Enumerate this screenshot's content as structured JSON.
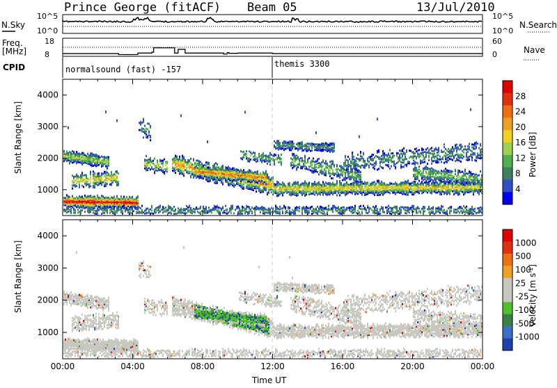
{
  "header": {
    "station": "Prince George (fitACF)",
    "beam": "Beam 05",
    "date": "13/Jul/2010"
  },
  "params": {
    "nsky_label": "N.Sky",
    "nsearch_label": "N.Search",
    "freq_label": "Freq.",
    "freq_unit": "[MHz]",
    "nave_label": "Nave",
    "cpid_label": "CPID",
    "nsky_ticks": [
      "10^5",
      "10^0"
    ],
    "nsearch_ticks": [
      "10^5",
      "10^0"
    ],
    "freq_ticks": [
      "18",
      "8"
    ],
    "nave_ticks": [
      "60",
      "0"
    ],
    "cpid_segments": [
      {
        "label": "normalsound (fast) -157",
        "start_hour": 0
      },
      {
        "label": "themis 3300",
        "start_hour": 12.0
      }
    ],
    "freq_series": [
      [
        0,
        10.2
      ],
      [
        1,
        10.2
      ],
      [
        2,
        10.2
      ],
      [
        3.1,
        10.2
      ],
      [
        3.2,
        9.4
      ],
      [
        4.2,
        9.4
      ],
      [
        4.3,
        10.6
      ],
      [
        5.1,
        11.3
      ],
      [
        5.2,
        14.8
      ],
      [
        6.3,
        14.8
      ],
      [
        6.4,
        10.6
      ],
      [
        6.6,
        13.6
      ],
      [
        6.9,
        13.6
      ],
      [
        7.0,
        10.6
      ],
      [
        9.1,
        10.6
      ],
      [
        9.2,
        9.8
      ],
      [
        9.4,
        11.0
      ],
      [
        9.5,
        10.4
      ],
      [
        10.0,
        10.6
      ],
      [
        11.9,
        10.6
      ],
      [
        12.0,
        10.2
      ],
      [
        24,
        10.2
      ]
    ]
  },
  "chart_data": [
    {
      "type": "heatmap",
      "name": "power",
      "ylabel": "Slant Range [km]",
      "xlabel": "",
      "colorbar_label": "Power [dB]",
      "colorbar_ticks": [
        "28",
        "24",
        "20",
        "16",
        "12",
        "8",
        "4"
      ],
      "yticks": [
        "4000",
        "3000",
        "2000",
        "1000"
      ],
      "ylim": [
        180,
        4500
      ],
      "xlim": [
        0,
        24
      ],
      "colorscale": [
        "#0000ee",
        "#3050c8",
        "#3e8060",
        "#50b050",
        "#a0d050",
        "#f0d020",
        "#f0a020",
        "#f07010",
        "#e03010",
        "#dd0000"
      ]
    },
    {
      "type": "heatmap",
      "name": "velocity",
      "ylabel": "Slant Range [km]",
      "xlabel": "Time UT",
      "colorbar_label": "Velocity [m s^-1]",
      "colorbar_ticks": [
        "1000",
        "500",
        "100",
        "25",
        "-25",
        "-100",
        "-500",
        "-1000"
      ],
      "xticks": [
        "00:00",
        "04:00",
        "08:00",
        "12:00",
        "16:00",
        "20:00",
        "00:00"
      ],
      "yticks": [
        "4000",
        "3000",
        "2000",
        "1000"
      ],
      "ylim": [
        180,
        4500
      ],
      "xlim": [
        0,
        24
      ],
      "colorscale": [
        "#2040b0",
        "#3a70c8",
        "#3a8040",
        "#50c030",
        "#c8c8c0",
        "#c8c8c0",
        "#f0a020",
        "#f07010",
        "#e03010",
        "#dd0000"
      ]
    }
  ]
}
